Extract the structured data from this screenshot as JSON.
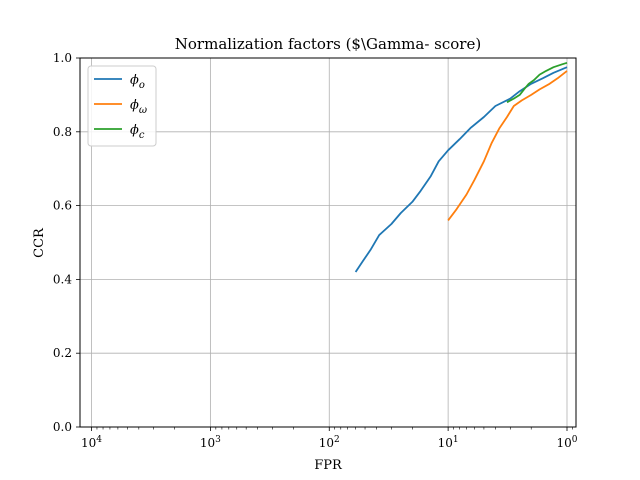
{
  "chart_data": {
    "type": "line",
    "title": "Normalization factors ($\\Gamma- score)",
    "xlabel": "FPR",
    "ylabel": "CCR",
    "x_scale": "log",
    "x_reversed": true,
    "xlim": [
      0.84,
      12500
    ],
    "ylim": [
      0,
      1
    ],
    "grid": true,
    "legend_position": "top-left",
    "x_ticks": [
      {
        "value": 10000,
        "base": "10",
        "exp": "4"
      },
      {
        "value": 1000,
        "base": "10",
        "exp": "3"
      },
      {
        "value": 100,
        "base": "10",
        "exp": "2"
      },
      {
        "value": 10,
        "base": "10",
        "exp": "1"
      },
      {
        "value": 1,
        "base": "10",
        "exp": "0"
      }
    ],
    "y_ticks": [
      "0.0",
      "0.2",
      "0.4",
      "0.6",
      "0.8",
      "1.0"
    ],
    "series": [
      {
        "name": "ϕo",
        "legend_base": "ϕ",
        "legend_sub": "o",
        "color": "#1f77b4",
        "points": [
          [
            60,
            0.42
          ],
          [
            52,
            0.45
          ],
          [
            45,
            0.48
          ],
          [
            38,
            0.52
          ],
          [
            30,
            0.55
          ],
          [
            25,
            0.58
          ],
          [
            20,
            0.61
          ],
          [
            17,
            0.64
          ],
          [
            14,
            0.68
          ],
          [
            12,
            0.72
          ],
          [
            10,
            0.75
          ],
          [
            8,
            0.78
          ],
          [
            6.5,
            0.81
          ],
          [
            5,
            0.84
          ],
          [
            4,
            0.87
          ],
          [
            3,
            0.89
          ],
          [
            2.5,
            0.91
          ],
          [
            2,
            0.93
          ],
          [
            1.6,
            0.945
          ],
          [
            1.3,
            0.96
          ],
          [
            1,
            0.975
          ]
        ]
      },
      {
        "name": "ϕω",
        "legend_base": "ϕ",
        "legend_sub": "ω",
        "color": "#ff7f0e",
        "points": [
          [
            10,
            0.56
          ],
          [
            8.5,
            0.59
          ],
          [
            7,
            0.63
          ],
          [
            6,
            0.67
          ],
          [
            5,
            0.72
          ],
          [
            4.3,
            0.77
          ],
          [
            3.7,
            0.81
          ],
          [
            3.2,
            0.84
          ],
          [
            2.8,
            0.87
          ],
          [
            2.4,
            0.885
          ],
          [
            2,
            0.9
          ],
          [
            1.7,
            0.915
          ],
          [
            1.4,
            0.93
          ],
          [
            1.2,
            0.945
          ],
          [
            1,
            0.965
          ]
        ]
      },
      {
        "name": "ϕc",
        "legend_base": "ϕ",
        "legend_sub": "c",
        "color": "#2ca02c",
        "points": [
          [
            3.2,
            0.88
          ],
          [
            2.8,
            0.89
          ],
          [
            2.5,
            0.9
          ],
          [
            2.3,
            0.915
          ],
          [
            2.1,
            0.93
          ],
          [
            1.9,
            0.94
          ],
          [
            1.7,
            0.955
          ],
          [
            1.5,
            0.965
          ],
          [
            1.3,
            0.975
          ],
          [
            1.1,
            0.983
          ],
          [
            1,
            0.987
          ]
        ]
      }
    ]
  }
}
